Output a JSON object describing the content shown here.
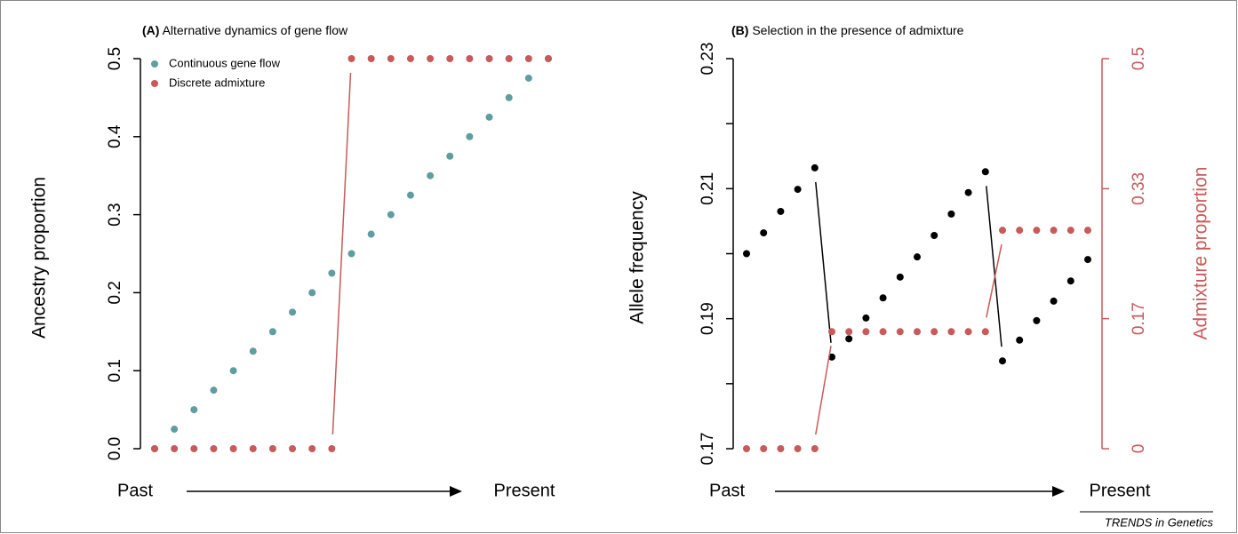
{
  "credit": "TRENDS in Genetics",
  "chart_data": [
    {
      "type": "scatter",
      "panel_label": "(A)",
      "title": "Alternative dynamics of gene flow",
      "ylabel": "Ancestry proportion",
      "x_start_label": "Past",
      "x_end_label": "Present",
      "ylim": [
        0,
        0.5
      ],
      "yticks": [
        {
          "value": 0,
          "label": "0.0"
        },
        0.1,
        0.2,
        0.3,
        0.4,
        0.5
      ],
      "legend": "upper left",
      "series": [
        {
          "name": "Continuous gene flow",
          "color": "#5f9ea0",
          "values": [
            0,
            0.025,
            0.05,
            0.075,
            0.1,
            0.125,
            0.15,
            0.175,
            0.2,
            0.225,
            0.25,
            0.275,
            0.3,
            0.325,
            0.35,
            0.375,
            0.4,
            0.425,
            0.45,
            0.475,
            0.5
          ]
        },
        {
          "name": "Discrete admixture",
          "color": "#c85a5a",
          "values": [
            0,
            0,
            0,
            0,
            0,
            0,
            0,
            0,
            0,
            0,
            0.5,
            0.5,
            0.5,
            0.5,
            0.5,
            0.5,
            0.5,
            0.5,
            0.5,
            0.5,
            0.5
          ]
        }
      ]
    },
    {
      "type": "scatter",
      "panel_label": "(B)",
      "title": "Selection in the presence of admixture",
      "ylabel": "Allele frequency",
      "y2label": "Admixture proportion",
      "x_start_label": "Past",
      "x_end_label": "Present",
      "ylim": [
        0.17,
        0.23
      ],
      "yticks": [
        0.17,
        0.19,
        0.21,
        0.23
      ],
      "yminor_ticks": [
        0.18,
        0.2,
        0.22
      ],
      "y2lim": [
        0,
        0.5
      ],
      "y2ticks": [
        0,
        {
          "value": 0.1667,
          "label": "0.17"
        },
        {
          "value": 0.3333,
          "label": "0.33"
        },
        0.5
      ],
      "y2color": "#c85a5a",
      "series": [
        {
          "color": "#000000",
          "values": [
            0.2,
            0.2032,
            0.2065,
            0.2099,
            0.2132,
            0.1841,
            0.1869,
            0.1901,
            0.1932,
            0.1964,
            0.1995,
            0.2028,
            0.2061,
            0.2094,
            0.2126,
            0.1835,
            0.1867,
            0.1897,
            0.1927,
            0.1958,
            0.1991
          ]
        },
        {
          "color": "#c85a5a",
          "axis": "y2",
          "values": [
            0,
            0,
            0,
            0,
            0,
            0.15,
            0.15,
            0.15,
            0.15,
            0.15,
            0.15,
            0.15,
            0.15,
            0.15,
            0.15,
            0.28,
            0.28,
            0.28,
            0.28,
            0.28,
            0.28
          ]
        }
      ]
    }
  ]
}
